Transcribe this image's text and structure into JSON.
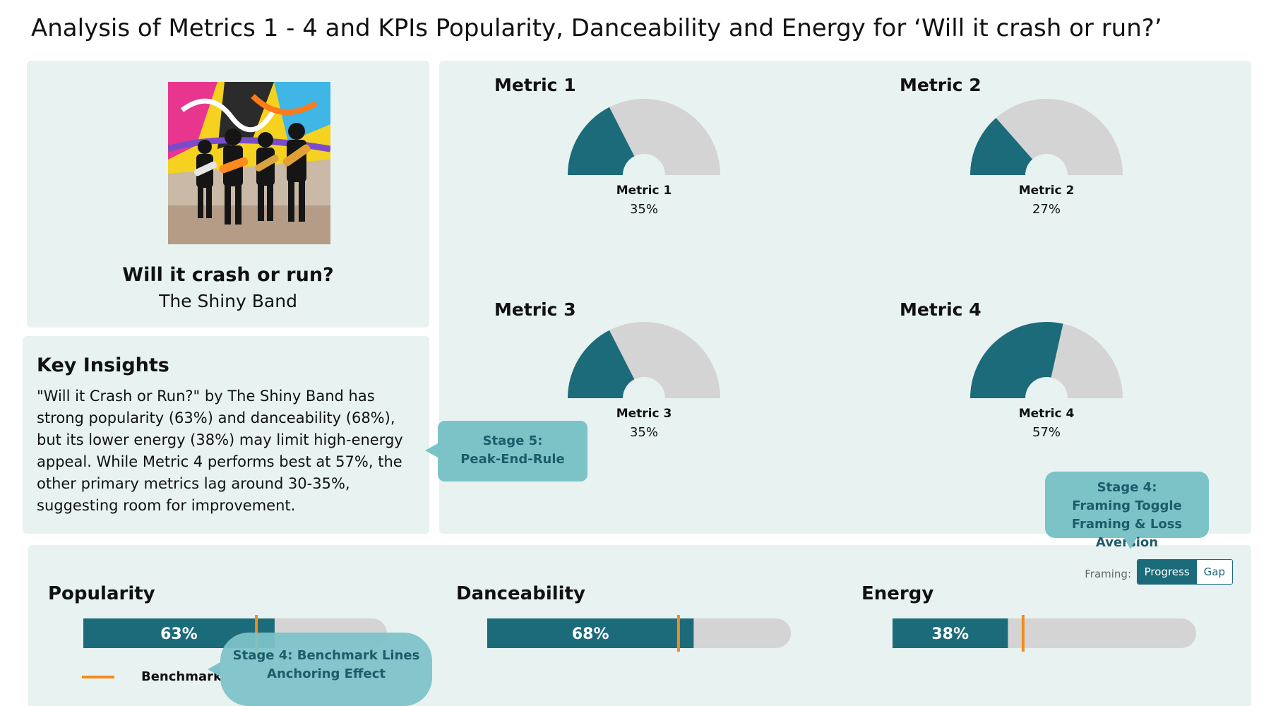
{
  "page": {
    "title": "Analysis of Metrics 1 - 4 and KPIs Popularity, Danceability and Energy for ‘Will it crash or run?’"
  },
  "album": {
    "song": "Will it crash or run?",
    "artist": "The Shiny Band"
  },
  "insights": {
    "heading": "Key Insights",
    "text": "\"Will it Crash or Run?\" by The Shiny Band has strong popularity (63%) and danceability (68%), but its lower energy (38%) may limit high-energy appeal. While Metric 4 performs best at 57%, the other primary metrics lag around 30-35%, suggesting room for improvement."
  },
  "framing": {
    "label": "Framing:",
    "options": [
      "Progress",
      "Gap"
    ],
    "selected": "Progress"
  },
  "benchmark_legend": "Benchmark",
  "callouts": {
    "stage5_line1": "Stage 5:",
    "stage5_line2": "Peak-End-Rule",
    "stage4_toggle_line1": "Stage 4:",
    "stage4_toggle_line2": "Framing Toggle",
    "stage4_toggle_line3": "Framing & Loss Aversion",
    "stage4_bench_line1": "Stage 4: Benchmark Lines",
    "stage4_bench_line2": "Anchoring Effect"
  },
  "colors": {
    "fill": "#1c6b7b",
    "track": "#d4d4d4",
    "benchmark": "#f28c1c",
    "panel": "#e8f2f0",
    "callout": "#7cc3c8"
  },
  "chart_data": [
    {
      "type": "gauge",
      "gauges": [
        {
          "title": "Metric 1",
          "label": "Metric 1",
          "value": 35,
          "value_text": "35%"
        },
        {
          "title": "Metric 2",
          "label": "Metric 2",
          "value": 27,
          "value_text": "27%"
        },
        {
          "title": "Metric 3",
          "label": "Metric 3",
          "value": 35,
          "value_text": "35%"
        },
        {
          "title": "Metric 4",
          "label": "Metric 4",
          "value": 57,
          "value_text": "57%"
        }
      ],
      "range": [
        0,
        100
      ]
    },
    {
      "type": "bar",
      "orientation": "horizontal",
      "kpis": [
        {
          "name": "Popularity",
          "value": 63,
          "value_text": "63%",
          "benchmark": 57
        },
        {
          "name": "Danceability",
          "value": 68,
          "value_text": "68%",
          "benchmark": 63
        },
        {
          "name": "Energy",
          "value": 38,
          "value_text": "38%",
          "benchmark": 43
        }
      ],
      "range": [
        0,
        100
      ]
    }
  ]
}
